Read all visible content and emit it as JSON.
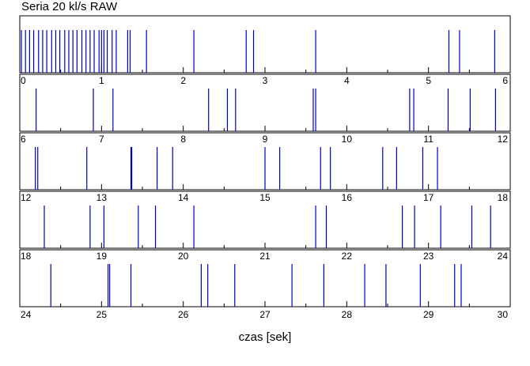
{
  "chart_data": {
    "type": "event-raster",
    "title": "Seria 20 kl/s RAW",
    "xlabel": "czas [sek]",
    "ylabel": "",
    "grid": false,
    "rows": [
      {
        "xlim": [
          0,
          6
        ],
        "events": [
          0.02,
          0.07,
          0.12,
          0.17,
          0.23,
          0.28,
          0.33,
          0.39,
          0.44,
          0.49,
          0.55,
          0.6,
          0.65,
          0.7,
          0.76,
          0.81,
          0.86,
          0.91,
          0.97,
          1.0,
          1.03,
          1.07,
          1.13,
          1.18,
          1.32,
          1.35,
          1.55,
          2.13,
          2.77,
          2.86,
          3.62,
          5.25,
          5.38,
          5.81
        ]
      },
      {
        "xlim": [
          6,
          12
        ],
        "events": [
          6.2,
          6.9,
          7.14,
          8.31,
          8.54,
          8.64,
          9.59,
          9.62,
          10.77,
          10.82,
          11.24,
          11.51,
          11.82
        ]
      },
      {
        "xlim": [
          12,
          18
        ],
        "events": [
          12.19,
          12.22,
          12.82,
          13.36,
          13.37,
          13.68,
          13.87,
          15.0,
          15.18,
          15.68,
          15.8,
          16.44,
          16.61,
          16.93,
          17.11
        ]
      },
      {
        "xlim": [
          18,
          24
        ],
        "events": [
          18.3,
          18.86,
          19.03,
          19.45,
          19.66,
          20.13,
          21.62,
          21.75,
          22.68,
          22.83,
          23.15,
          23.53,
          23.76
        ]
      },
      {
        "xlim": [
          24,
          30
        ],
        "events": [
          24.38,
          25.08,
          25.1,
          25.36,
          26.22,
          26.3,
          26.63,
          27.33,
          27.72,
          28.22,
          28.48,
          28.9,
          29.32,
          29.4
        ]
      }
    ],
    "tick_labels": [
      [
        "0",
        "1",
        "2",
        "3",
        "4",
        "5",
        "6"
      ],
      [
        "6",
        "7",
        "8",
        "9",
        "10",
        "11",
        "12"
      ],
      [
        "12",
        "13",
        "14",
        "15",
        "16",
        "17",
        "18"
      ],
      [
        "18",
        "19",
        "20",
        "21",
        "22",
        "23",
        "24"
      ],
      [
        "24",
        "25",
        "26",
        "27",
        "28",
        "29",
        "30"
      ]
    ],
    "colors": {
      "events": "#0000cc",
      "axes": "#000000"
    }
  }
}
